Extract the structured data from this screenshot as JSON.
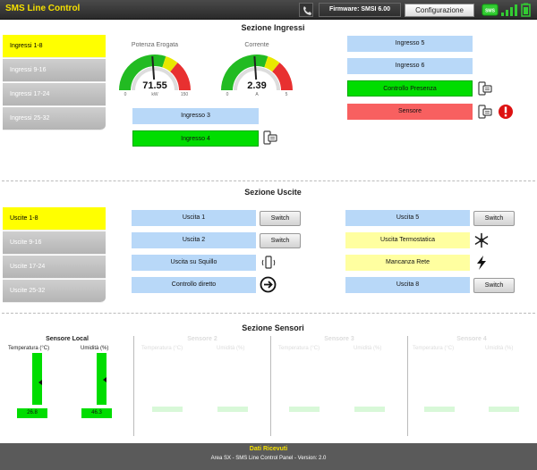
{
  "header": {
    "title": "SMS Line Control",
    "firmware": "Firmware: SMSI 6.00",
    "config_label": "Configurazione"
  },
  "ingressi": {
    "section_title": "Sezione Ingressi",
    "tabs": [
      "Ingressi 1-8",
      "Ingressi 9-16",
      "Ingressi 17-24",
      "Ingressi 25-32"
    ],
    "gauges": [
      {
        "label": "Potenza Erogata",
        "value": "71.55",
        "unit": "kW",
        "min": "0",
        "max": "150",
        "level": 0.477
      },
      {
        "label": "Corrente",
        "value": "2.39",
        "unit": "A",
        "min": "0",
        "max": "5",
        "level": 0.478
      }
    ],
    "inputs": [
      {
        "label": "Ingresso 3",
        "color": "blue"
      },
      {
        "label": "Ingresso 4",
        "color": "green"
      },
      {
        "label": "Ingresso 5",
        "color": "blue"
      },
      {
        "label": "Ingresso 6",
        "color": "blue"
      },
      {
        "label": "Controllo Presenza",
        "color": "green"
      },
      {
        "label": "Sensore",
        "color": "red"
      }
    ]
  },
  "uscite": {
    "section_title": "Sezione Uscite",
    "tabs": [
      "Uscite 1-8",
      "Uscite 9-16",
      "Uscite 17-24",
      "Uscite 25-32"
    ],
    "switch_label": "Switch",
    "outputs": [
      {
        "label": "Uscita 1"
      },
      {
        "label": "Uscita 2"
      },
      {
        "label": "Uscita su Squillo"
      },
      {
        "label": "Controllo diretto"
      },
      {
        "label": "Uscita 5"
      },
      {
        "label": "Uscita Termostatica"
      },
      {
        "label": "Mancanza Rete"
      },
      {
        "label": "Uscita 8"
      }
    ]
  },
  "sensori": {
    "section_title": "Sezione Sensori",
    "sensors": [
      {
        "title": "Sensore Local",
        "temp_label": "Temperatura (°C)",
        "hum_label": "Umidità (%)",
        "temp_value": "26.8",
        "hum_value": "46.3",
        "temp_level": 0.9,
        "hum_level": 0.55
      },
      {
        "title": "Sensore 2",
        "temp_label": "Temperatura (°C)",
        "hum_label": "Umidità (%)"
      },
      {
        "title": "Sensore 3",
        "temp_label": "Temperatura (°C)",
        "hum_label": "Umidità (%)"
      },
      {
        "title": "Sensore 4",
        "temp_label": "Temperatura (°C)",
        "hum_label": "Umidità (%)"
      }
    ]
  },
  "footer": {
    "title": "Dati Ricevuti",
    "subtitle": "Area SX - SMS Line Control Panel - Version: 2.0"
  },
  "colors": {
    "accent_yellow": "#ffff00",
    "blue": "#b8d8f8",
    "green": "#00dd00",
    "red": "#f86060",
    "pale_yellow": "#ffffa0"
  }
}
